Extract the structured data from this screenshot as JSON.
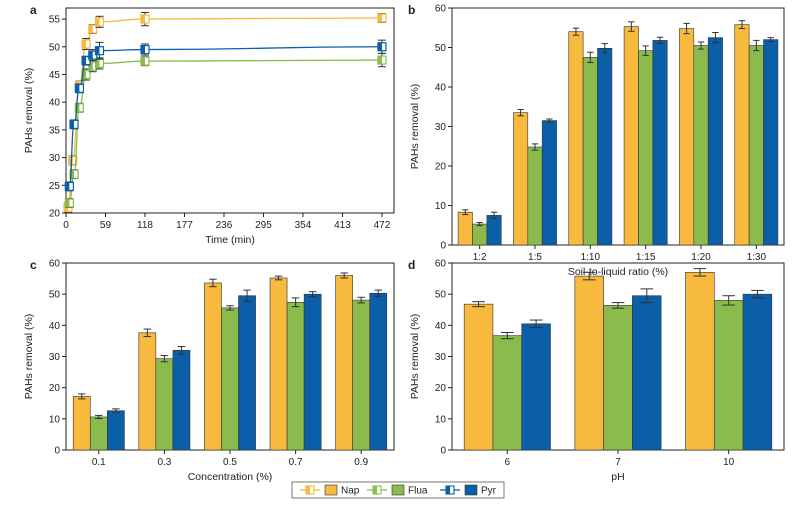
{
  "colors": {
    "Nap": "#f7b93e",
    "Flua": "#8bbb4d",
    "Pyr": "#0a5fa8",
    "err": "#333333"
  },
  "legend": {
    "entries": [
      {
        "name": "Nap",
        "color": "#f7b93e"
      },
      {
        "name": "Flua",
        "color": "#8bbb4d"
      },
      {
        "name": "Pyr",
        "color": "#0a5fa8"
      }
    ]
  },
  "chart_data": [
    {
      "panel": "a",
      "type": "line",
      "xlabel": "Time (min)",
      "ylabel": "PAHs removal (%)",
      "xlim": [
        0,
        490
      ],
      "ylim": [
        20,
        57
      ],
      "xticks": [
        0,
        59,
        118,
        177,
        236,
        295,
        354,
        413,
        472
      ],
      "yticks": [
        20,
        25,
        30,
        35,
        40,
        45,
        50,
        55
      ],
      "series": [
        {
          "name": "Nap",
          "x": [
            3,
            10,
            20,
            30,
            40,
            50,
            118,
            472
          ],
          "y": [
            21.0,
            29.5,
            43.0,
            50.5,
            53.2,
            54.5,
            55.0,
            55.2
          ],
          "err": [
            0.8,
            0.8,
            0.8,
            1.0,
            0.8,
            1.0,
            1.2,
            0.8
          ]
        },
        {
          "name": "Flua",
          "x": [
            5,
            12,
            20,
            30,
            40,
            50,
            118,
            472
          ],
          "y": [
            21.8,
            27.0,
            39.0,
            45.0,
            46.5,
            47.0,
            47.4,
            47.6
          ],
          "err": [
            0.8,
            0.8,
            0.8,
            1.0,
            1.0,
            1.0,
            0.8,
            1.2
          ]
        },
        {
          "name": "Pyr",
          "x": [
            5,
            12,
            20,
            30,
            40,
            50,
            118,
            472
          ],
          "y": [
            24.8,
            36.0,
            42.5,
            47.5,
            48.5,
            49.3,
            49.5,
            50.0
          ],
          "err": [
            0.8,
            0.8,
            0.8,
            0.8,
            1.0,
            1.5,
            1.0,
            1.2
          ]
        }
      ]
    },
    {
      "panel": "b",
      "type": "bar",
      "xlabel": "Soil-to-liquid ratio (%)",
      "ylabel": "PAHs removal (%)",
      "ylim": [
        0,
        60
      ],
      "yticks": [
        0,
        10,
        20,
        30,
        40,
        50,
        60
      ],
      "categories": [
        "1:2",
        "1:5",
        "1:10",
        "1:15",
        "1:20",
        "1:30"
      ],
      "series": [
        {
          "name": "Nap",
          "values": [
            8.3,
            33.5,
            54.0,
            55.3,
            54.8,
            55.8
          ],
          "err": [
            0.6,
            0.8,
            0.9,
            1.2,
            1.3,
            1.0
          ]
        },
        {
          "name": "Flua",
          "values": [
            5.3,
            24.8,
            47.5,
            49.2,
            50.5,
            50.5
          ],
          "err": [
            0.4,
            0.8,
            1.3,
            1.2,
            0.9,
            1.3
          ]
        },
        {
          "name": "Pyr",
          "values": [
            7.5,
            31.5,
            49.8,
            51.8,
            52.5,
            52.0
          ],
          "err": [
            0.8,
            0.4,
            1.2,
            0.8,
            1.3,
            0.5
          ]
        }
      ]
    },
    {
      "panel": "c",
      "type": "bar",
      "xlabel": "Concentration (%)",
      "ylabel": "PAHs removal (%)",
      "ylim": [
        0,
        60
      ],
      "yticks": [
        0,
        10,
        20,
        30,
        40,
        50,
        60
      ],
      "categories": [
        "0.1",
        "0.3",
        "0.5",
        "0.7",
        "0.9"
      ],
      "series": [
        {
          "name": "Nap",
          "values": [
            17.2,
            37.6,
            53.6,
            55.2,
            56.0
          ],
          "err": [
            0.8,
            1.2,
            1.2,
            0.6,
            0.8
          ]
        },
        {
          "name": "Flua",
          "values": [
            10.6,
            29.3,
            45.6,
            47.4,
            48.1
          ],
          "err": [
            0.5,
            1.0,
            0.7,
            1.4,
            0.9
          ]
        },
        {
          "name": "Pyr",
          "values": [
            12.6,
            32.0,
            49.5,
            50.0,
            50.3
          ],
          "err": [
            0.6,
            1.2,
            1.8,
            0.8,
            1.0
          ]
        }
      ]
    },
    {
      "panel": "d",
      "type": "bar",
      "xlabel": "pH",
      "ylabel": "PAHs removal (%)",
      "ylim": [
        0,
        60
      ],
      "yticks": [
        0,
        10,
        20,
        30,
        40,
        50,
        60
      ],
      "categories": [
        "6",
        "7",
        "10"
      ],
      "series": [
        {
          "name": "Nap",
          "values": [
            46.8,
            55.8,
            57.0
          ],
          "err": [
            0.8,
            1.2,
            1.2
          ]
        },
        {
          "name": "Flua",
          "values": [
            36.7,
            46.4,
            48.0
          ],
          "err": [
            1.0,
            0.9,
            1.5
          ]
        },
        {
          "name": "Pyr",
          "values": [
            40.5,
            49.5,
            50.0
          ],
          "err": [
            1.2,
            2.2,
            1.2
          ]
        }
      ]
    }
  ]
}
